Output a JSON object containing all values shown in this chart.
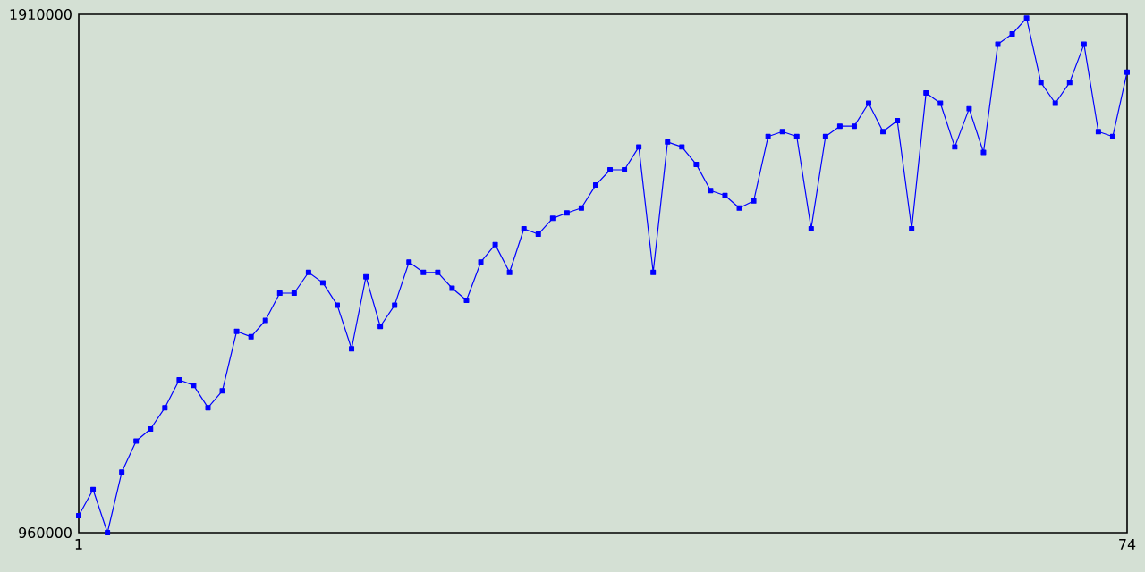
{
  "chart_data": {
    "type": "line",
    "x": [
      1,
      2,
      3,
      4,
      5,
      6,
      7,
      8,
      9,
      10,
      11,
      12,
      13,
      14,
      15,
      16,
      17,
      18,
      19,
      20,
      21,
      22,
      23,
      24,
      25,
      26,
      27,
      28,
      29,
      30,
      31,
      32,
      33,
      34,
      35,
      36,
      37,
      38,
      39,
      40,
      41,
      42,
      43,
      44,
      45,
      46,
      47,
      48,
      49,
      50,
      51,
      52,
      53,
      54,
      55,
      56,
      57,
      58,
      59,
      60,
      61,
      62,
      63,
      64,
      65,
      66,
      67,
      68,
      69,
      70,
      71,
      72,
      73,
      74
    ],
    "values": [
      991000,
      1039000,
      960000,
      1071000,
      1128000,
      1150000,
      1189000,
      1240000,
      1230000,
      1189000,
      1220000,
      1329000,
      1319000,
      1349000,
      1399000,
      1399000,
      1437000,
      1418000,
      1377000,
      1297000,
      1429000,
      1338000,
      1377000,
      1456000,
      1437000,
      1437000,
      1408000,
      1386000,
      1456000,
      1488000,
      1437000,
      1517000,
      1507000,
      1536000,
      1546000,
      1555000,
      1597000,
      1625000,
      1625000,
      1667000,
      1437000,
      1676000,
      1667000,
      1635000,
      1587000,
      1578000,
      1555000,
      1568000,
      1686000,
      1695000,
      1686000,
      1517000,
      1686000,
      1705000,
      1705000,
      1747000,
      1695000,
      1715000,
      1517000,
      1766000,
      1747000,
      1667000,
      1737000,
      1657000,
      1855000,
      1874000,
      1903000,
      1785000,
      1747000,
      1785000,
      1855000,
      1695000,
      1686000,
      1804000
    ],
    "color": "#0000ff",
    "marker": "square",
    "line_style": "solid",
    "xlim": [
      1,
      74
    ],
    "xticks": [
      1,
      74
    ],
    "ylim": [
      960000,
      1910000
    ],
    "yticks": [
      960000,
      1910000
    ]
  }
}
